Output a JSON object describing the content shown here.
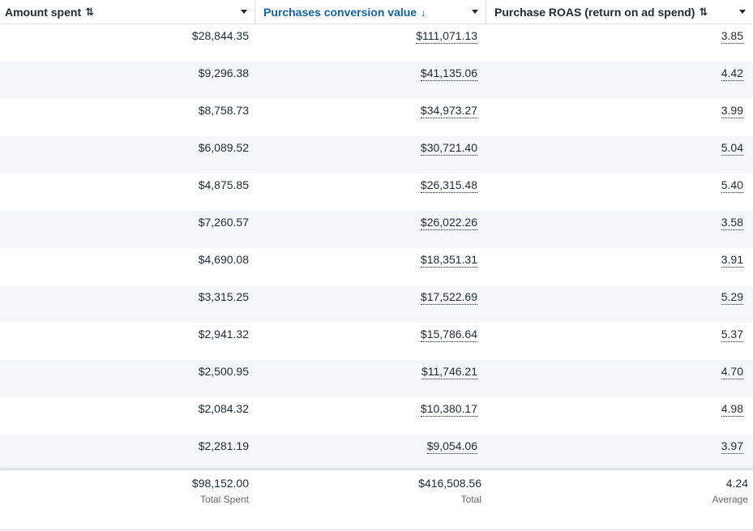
{
  "columns": [
    {
      "label": "Amount spent",
      "sort_icon": "⇅",
      "icon_name": "sort-both-icon"
    },
    {
      "label": "Purchases conversion value",
      "sort_icon": "↓",
      "icon_name": "sort-down-icon"
    },
    {
      "label": "Purchase ROAS (return on ad spend)",
      "sort_icon": "⇅",
      "icon_name": "sort-both-icon"
    }
  ],
  "accent_color": "#1461a6",
  "rows": [
    {
      "spent": "$28,844.35",
      "value": "$111,071.13",
      "roas": "3.85"
    },
    {
      "spent": "$9,296.38",
      "value": "$41,135.06",
      "roas": "4.42"
    },
    {
      "spent": "$8,758.73",
      "value": "$34,973.27",
      "roas": "3.99"
    },
    {
      "spent": "$6,089.52",
      "value": "$30,721.40",
      "roas": "5.04"
    },
    {
      "spent": "$4,875.85",
      "value": "$26,315.48",
      "roas": "5.40"
    },
    {
      "spent": "$7,260.57",
      "value": "$26,022.26",
      "roas": "3.58"
    },
    {
      "spent": "$4,690.08",
      "value": "$18,351.31",
      "roas": "3.91"
    },
    {
      "spent": "$3,315.25",
      "value": "$17,522.69",
      "roas": "5.29"
    },
    {
      "spent": "$2,941.32",
      "value": "$15,786.64",
      "roas": "5.37"
    },
    {
      "spent": "$2,500.95",
      "value": "$11,746.21",
      "roas": "4.70"
    },
    {
      "spent": "$2,084.32",
      "value": "$10,380.17",
      "roas": "4.98"
    },
    {
      "spent": "$2,281.19",
      "value": "$9,054.06",
      "roas": "3.97"
    }
  ],
  "totals": {
    "spent": "$98,152.00",
    "spent_label": "Total Spent",
    "value": "$416,508.56",
    "value_label": "Total",
    "roas": "4.24",
    "roas_label": "Average"
  }
}
